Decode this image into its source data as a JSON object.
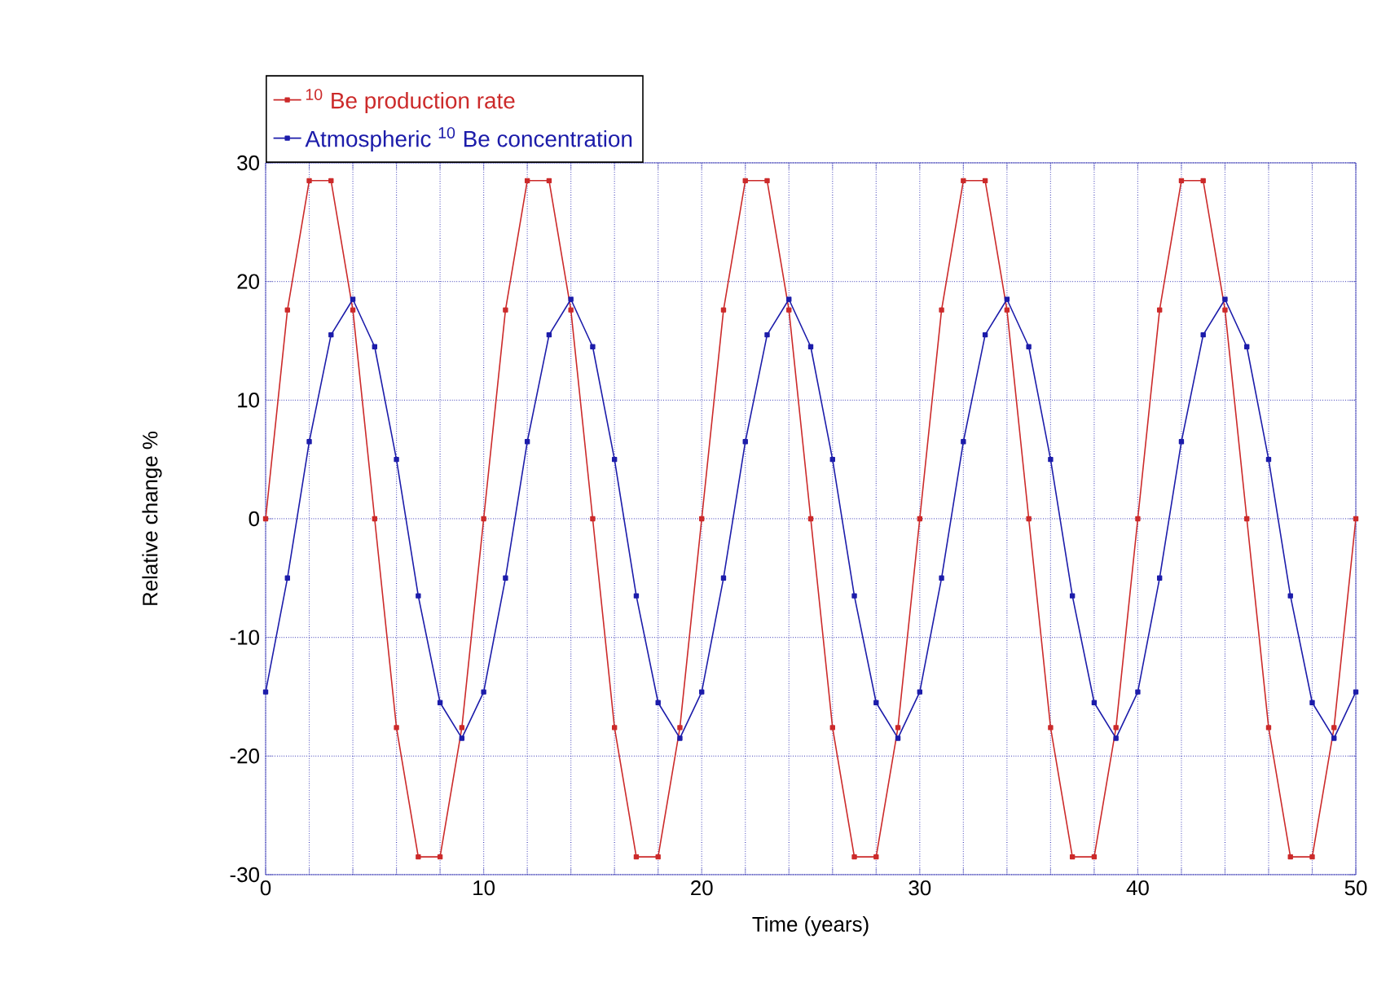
{
  "chart_data": {
    "type": "line",
    "xlabel": "Time (years)",
    "ylabel": "Relative change %",
    "x": [
      0,
      1,
      2,
      3,
      4,
      5,
      6,
      7,
      8,
      9,
      10,
      11,
      12,
      13,
      14,
      15,
      16,
      17,
      18,
      19,
      20,
      21,
      22,
      23,
      24,
      25,
      26,
      27,
      28,
      29,
      30,
      31,
      32,
      33,
      34,
      35,
      36,
      37,
      38,
      39,
      40,
      41,
      42,
      43,
      44,
      45,
      46,
      47,
      48,
      49,
      50
    ],
    "series": [
      {
        "name": "$^{10}$ Be production rate",
        "color": "#cc2a2a",
        "values": [
          0,
          17.6,
          28.5,
          28.5,
          17.6,
          0,
          -17.6,
          -28.5,
          -28.5,
          -17.6,
          0,
          17.6,
          28.5,
          28.5,
          17.6,
          0,
          -17.6,
          -28.5,
          -28.5,
          -17.6,
          0,
          17.6,
          28.5,
          28.5,
          17.6,
          0,
          -17.6,
          -28.5,
          -28.5,
          -17.6,
          0,
          17.6,
          28.5,
          28.5,
          17.6,
          0,
          -17.6,
          -28.5,
          -28.5,
          -17.6,
          0,
          17.6,
          28.5,
          28.5,
          17.6,
          0,
          -17.6,
          -28.5,
          -28.5,
          -17.6,
          0
        ]
      },
      {
        "name": "Atmospheric $^{10}$ Be concentration",
        "color": "#1c1caa",
        "values": [
          -14.6,
          -5,
          6.5,
          15.5,
          18.5,
          14.5,
          5,
          -6.5,
          -15.5,
          -18.5,
          -14.6,
          -5,
          6.5,
          15.5,
          18.5,
          14.5,
          5,
          -6.5,
          -15.5,
          -18.5,
          -14.6,
          -5,
          6.5,
          15.5,
          18.5,
          14.5,
          5,
          -6.5,
          -15.5,
          -18.5,
          -14.6,
          -5,
          6.5,
          15.5,
          18.5,
          14.5,
          5,
          -6.5,
          -15.5,
          -18.5,
          -14.6,
          -5,
          6.5,
          15.5,
          18.5,
          14.5,
          5,
          -6.5,
          -15.5,
          -18.5,
          -14.6
        ]
      }
    ],
    "xlim": [
      0,
      50
    ],
    "ylim": [
      -30,
      30
    ],
    "xticks": [
      0,
      {
        "value": 2,
        "label": null
      },
      {
        "value": 4,
        "label": null
      },
      {
        "value": 6,
        "label": null
      },
      {
        "value": 8,
        "label": null
      },
      10,
      {
        "value": 12,
        "label": null
      },
      {
        "value": 14,
        "label": null
      },
      {
        "value": 16,
        "label": null
      },
      {
        "value": 18,
        "label": null
      },
      20,
      {
        "value": 22,
        "label": null
      },
      {
        "value": 24,
        "label": null
      },
      {
        "value": 26,
        "label": null
      },
      {
        "value": 28,
        "label": null
      },
      30,
      {
        "value": 32,
        "label": null
      },
      {
        "value": 34,
        "label": null
      },
      {
        "value": 36,
        "label": null
      },
      {
        "value": 38,
        "label": null
      },
      40,
      {
        "value": 42,
        "label": null
      },
      {
        "value": 44,
        "label": null
      },
      {
        "value": 46,
        "label": null
      },
      {
        "value": 48,
        "label": null
      },
      50
    ],
    "yticks": [
      -30,
      -20,
      -10,
      0,
      10,
      20,
      30
    ],
    "grid": true,
    "legend": "top left",
    "marker": "square",
    "line_style": "solid"
  }
}
